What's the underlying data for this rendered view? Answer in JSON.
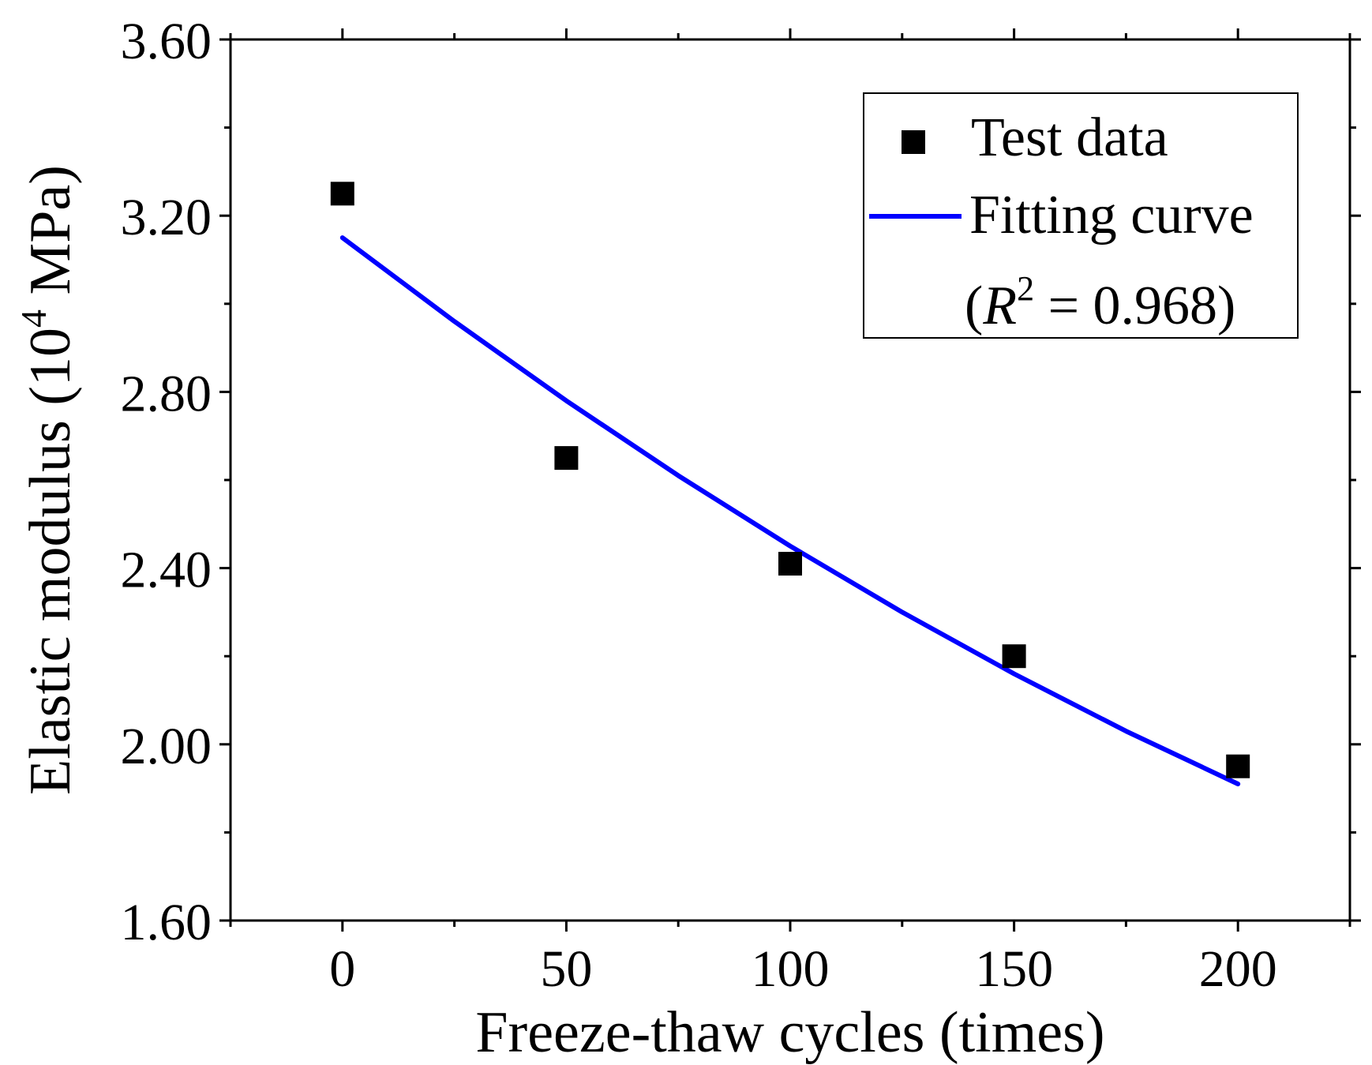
{
  "chart_data": {
    "type": "scatter",
    "title": "",
    "xlabel": "Freeze-thaw cycles (times)",
    "ylabel": {
      "prefix": "Elastic modulus (10",
      "superscript": "4",
      "suffix": " MPa)"
    },
    "xlim": [
      -25,
      225
    ],
    "ylim": [
      1.6,
      3.6
    ],
    "x_ticks": [
      0,
      50,
      100,
      150,
      200
    ],
    "x_tick_labels": [
      "0",
      "50",
      "100",
      "150",
      "200"
    ],
    "y_ticks": [
      1.6,
      2.0,
      2.4,
      2.8,
      3.2,
      3.6
    ],
    "y_tick_labels": [
      "1.60",
      "2.00",
      "2.40",
      "2.80",
      "3.20",
      "3.60"
    ],
    "x_minor_ticks": [
      -25,
      25,
      75,
      125,
      175,
      225
    ],
    "y_minor_ticks": [
      1.8,
      2.2,
      2.6,
      3.0,
      3.4
    ],
    "grid": false,
    "legend_position": "top-right",
    "series": [
      {
        "name": "Test data",
        "kind": "scatter",
        "marker": "square",
        "color": "#000000",
        "x": [
          0,
          50,
          100,
          150,
          200
        ],
        "y": [
          3.25,
          2.65,
          2.41,
          2.2,
          1.95
        ]
      },
      {
        "name": "Fitting curve",
        "kind": "line",
        "color": "#0000ff",
        "x": [
          0,
          25,
          50,
          75,
          100,
          125,
          150,
          175,
          200
        ],
        "y": [
          3.15,
          2.96,
          2.78,
          2.61,
          2.45,
          2.3,
          2.16,
          2.03,
          1.91
        ]
      }
    ],
    "legend": {
      "entries": [
        "Test data",
        "Fitting curve"
      ],
      "r2_line": {
        "open": "(",
        "symbol": "R",
        "superscript": "2",
        "rest": " = 0.968)"
      }
    }
  }
}
